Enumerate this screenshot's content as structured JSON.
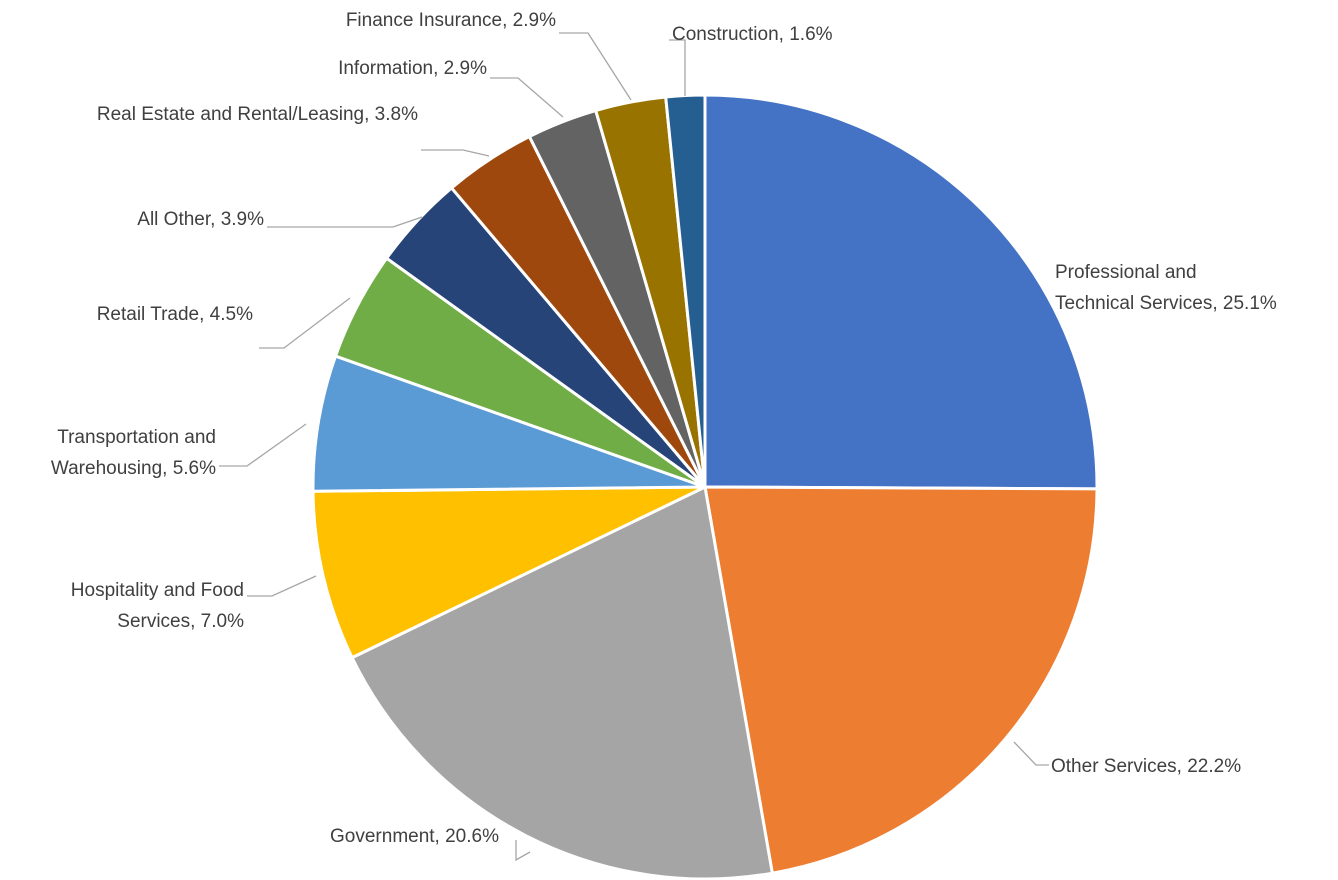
{
  "chart_data": {
    "type": "pie",
    "title": "",
    "legend": "none",
    "slices": [
      {
        "name": "Professional  and Technical Services",
        "value": 25.1,
        "label": "Professional  and Technical Services, 25.1%",
        "color": "#4472C4"
      },
      {
        "name": "Other Services",
        "value": 22.2,
        "label": "Other Services, 22.2%",
        "color": "#ED7D31"
      },
      {
        "name": "Government",
        "value": 20.6,
        "label": "Government, 20.6%",
        "color": "#A5A5A5"
      },
      {
        "name": "Hospitality and Food Services",
        "value": 7.0,
        "label": "Hospitality and Food Services, 7.0%",
        "color": "#FFC000"
      },
      {
        "name": "Transportation and Warehousing",
        "value": 5.6,
        "label": "Transportation and Warehousing, 5.6%",
        "color": "#5B9BD5"
      },
      {
        "name": "Retail Trade",
        "value": 4.5,
        "label": "Retail Trade, 4.5%",
        "color": "#70AD47"
      },
      {
        "name": "All Other",
        "value": 3.9,
        "label": "All Other, 3.9%",
        "color": "#264478"
      },
      {
        "name": "Real Estate and Rental/Leasing",
        "value": 3.8,
        "label": "Real Estate and Rental/Leasing, 3.8%",
        "color": "#9E480E"
      },
      {
        "name": "Information",
        "value": 2.9,
        "label": "Information, 2.9%",
        "color": "#636363"
      },
      {
        "name": "Finance Insurance",
        "value": 2.9,
        "label": "Finance Insurance, 2.9%",
        "color": "#997300"
      },
      {
        "name": "Construction",
        "value": 1.6,
        "label": "Construction,  1.6%",
        "color": "#255E91"
      }
    ]
  }
}
